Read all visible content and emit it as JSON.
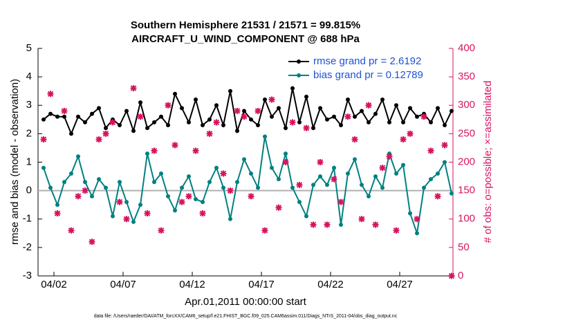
{
  "chart_data": {
    "type": "line",
    "title": "Southern Hemisphere 21531 / 21571 = 99.815%",
    "subtitle": "AIRCRAFT_U_WIND_COMPONENT @ 688 hPa",
    "xlabel": "Apr.01,2011 00:00:00 start",
    "ylabel": "rmse and bias (model - observation)",
    "y2label": "# of obs: o=possible; ×=assimilated",
    "footnote": "data file: /Users/raeder/DAI/ATM_forcXX/CAM6_setup/f.e21.FHIST_BGC.f09_025.CAM6assim.011/Diags_NTrS_2011-04/obs_diag_output.nc",
    "x": [
      0.25,
      0.75,
      1.25,
      1.75,
      2.25,
      2.75,
      3.25,
      3.75,
      4.25,
      4.75,
      5.25,
      5.75,
      6.25,
      6.75,
      7.25,
      7.75,
      8.25,
      8.75,
      9.25,
      9.75,
      10.25,
      10.75,
      11.25,
      11.75,
      12.25,
      12.75,
      13.25,
      13.75,
      14.25,
      14.75,
      15.25,
      15.75,
      16.25,
      16.75,
      17.25,
      17.75,
      18.25,
      18.75,
      19.25,
      19.75,
      20.25,
      20.75,
      21.25,
      21.75,
      22.25,
      22.75,
      23.25,
      23.75,
      24.25,
      24.75,
      25.25,
      25.75,
      26.25,
      26.75,
      27.25,
      27.75,
      28.25,
      28.75,
      29.25,
      29.75
    ],
    "series": [
      {
        "name": "rmse grand pr = 2.6192",
        "color": "#000000",
        "values": [
          2.5,
          2.7,
          2.6,
          2.6,
          2.0,
          2.6,
          2.4,
          2.7,
          2.9,
          2.2,
          2.5,
          2.3,
          2.8,
          2.1,
          3.1,
          2.2,
          2.4,
          2.6,
          2.3,
          3.4,
          2.9,
          2.4,
          3.2,
          2.3,
          2.5,
          3.0,
          2.3,
          3.5,
          2.1,
          2.8,
          2.5,
          2.3,
          3.2,
          2.6,
          2.9,
          2.2,
          3.6,
          2.4,
          3.3,
          2.2,
          2.9,
          2.5,
          2.6,
          2.3,
          3.2,
          2.6,
          2.8,
          2.4,
          2.7,
          3.2,
          2.4,
          3.0,
          2.4,
          2.9,
          2.6,
          2.7,
          2.4,
          2.9,
          2.3,
          2.8
        ]
      },
      {
        "name": "bias grand pr = 0.12789",
        "color": "#008080",
        "values": [
          0.8,
          0.1,
          -0.5,
          0.3,
          0.6,
          1.2,
          0.3,
          -0.2,
          0.4,
          0.1,
          -0.9,
          0.3,
          -0.4,
          -1.1,
          -0.5,
          1.3,
          0.3,
          0.6,
          -0.2,
          -0.7,
          0.1,
          0.5,
          -0.3,
          -0.4,
          0.3,
          0.8,
          0.1,
          -1.0,
          0.3,
          1.1,
          0.6,
          0.1,
          1.9,
          0.8,
          0.4,
          1.3,
          0.1,
          -0.4,
          -0.9,
          0.2,
          0.5,
          0.2,
          0.8,
          -1.2,
          0.6,
          1.1,
          0.2,
          -0.2,
          0.5,
          0.1,
          1.3,
          0.6,
          0.9,
          -0.8,
          -1.5,
          0.1,
          0.4,
          0.6,
          1.0,
          -0.1
        ]
      },
      {
        "color": "#d6145f",
        "axis": "y2",
        "marker": "x",
        "values": [
          240,
          320,
          110,
          290,
          80,
          140,
          150,
          60,
          240,
          250,
          270,
          130,
          100,
          330,
          280,
          110,
          220,
          80,
          300,
          230,
          130,
          140,
          220,
          110,
          250,
          270,
          180,
          150,
          290,
          280,
          140,
          290,
          80,
          310,
          120,
          200,
          270,
          160,
          260,
          90,
          200,
          90,
          170,
          130,
          280,
          240,
          100,
          300,
          90,
          190,
          210,
          80,
          240,
          250,
          100,
          280,
          220,
          140,
          230,
          0
        ]
      }
    ],
    "xlim": [
      -0.15,
      29.85
    ],
    "xticks": [
      {
        "value": 1,
        "label": "04/02"
      },
      {
        "value": 6,
        "label": "04/07"
      },
      {
        "value": 11,
        "label": "04/12"
      },
      {
        "value": 16,
        "label": "04/17"
      },
      {
        "value": 21,
        "label": "04/22"
      },
      {
        "value": 26,
        "label": "04/27"
      }
    ],
    "ylim": [
      -3,
      5
    ],
    "yticks": [
      -3,
      -2,
      -1,
      0,
      1,
      2,
      3,
      4,
      5
    ],
    "y2lim": [
      0,
      400
    ],
    "y2ticks": [
      0,
      50,
      100,
      150,
      200,
      250,
      300,
      350,
      400
    ],
    "y2color": "#d6145f",
    "zero_line": true,
    "legend": "upper right"
  }
}
